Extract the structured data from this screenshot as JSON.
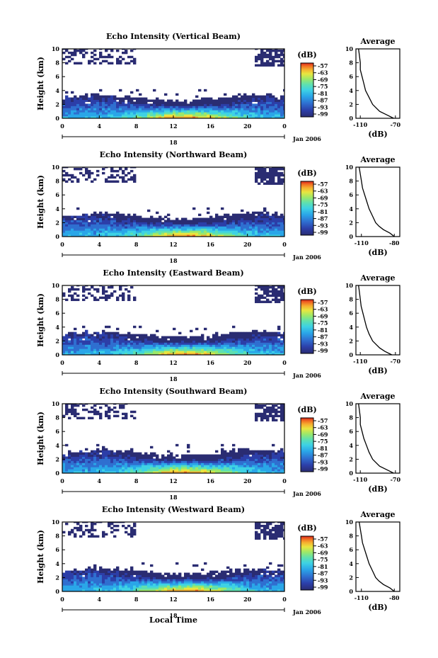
{
  "colors": {
    "scale": [
      "#2a2c72",
      "#2c3ea8",
      "#2f6fd0",
      "#2aa6e8",
      "#3ed2e4",
      "#5ee0b0",
      "#9be86a",
      "#e8e640",
      "#f6b030",
      "#f06a22",
      "#d8241c"
    ]
  },
  "common": {
    "ylabel": "Height (km)",
    "x_ticks": [
      "0",
      "4",
      "8",
      "12",
      "16",
      "20",
      "0"
    ],
    "y_ticks": [
      "0",
      "2",
      "4",
      "6",
      "8",
      "10"
    ],
    "date_tick": "18",
    "date_label": "Jan 2006",
    "xlabel": "Local Time",
    "colorbar_unit": "(dB)",
    "colorbar_ticks": [
      "-57",
      "-63",
      "-69",
      "-75",
      "-81",
      "-87",
      "-93",
      "-99"
    ],
    "profile_title": "Average",
    "profile_xlabel": "(dB)",
    "profile_y_ticks": [
      "0",
      "2",
      "4",
      "6",
      "8",
      "10"
    ]
  },
  "panels": [
    {
      "title": "Echo Intensity (Vertical Beam)",
      "profile_xticks": [
        "-110",
        "-70"
      ]
    },
    {
      "title": "Echo Intensity (Northward Beam)",
      "profile_xticks": [
        "-110",
        "-80"
      ]
    },
    {
      "title": "Echo Intensity (Eastward Beam)",
      "profile_xticks": [
        "-110",
        "-70"
      ]
    },
    {
      "title": "Echo Intensity (Southward Beam)",
      "profile_xticks": [
        "-110",
        "-70"
      ]
    },
    {
      "title": "Echo Intensity (Westward Beam)",
      "profile_xticks": [
        "-110",
        "-80"
      ]
    }
  ],
  "chart_data": {
    "type": "heatmap",
    "x_unit": "local time (h)",
    "xlim": [
      0,
      24
    ],
    "ylim": [
      0,
      10
    ],
    "colorbar_range": [
      -99,
      -57
    ],
    "profiles": [
      {
        "height": [
          0,
          0.5,
          1,
          1.5,
          2,
          3,
          4,
          5,
          6,
          7,
          8,
          9,
          10
        ],
        "db": [
          -72,
          -80,
          -88,
          -92,
          -96,
          -100,
          -104,
          -106,
          -108,
          -110,
          -110,
          -111,
          -112
        ]
      },
      {
        "height": [
          0,
          0.5,
          1,
          1.5,
          2,
          3,
          4,
          5,
          6,
          7,
          8,
          9,
          10
        ],
        "db": [
          -80,
          -84,
          -90,
          -94,
          -97,
          -100,
          -103,
          -105,
          -107,
          -109,
          -110,
          -111,
          -112
        ]
      },
      {
        "height": [
          0,
          0.5,
          1,
          1.5,
          2,
          3,
          4,
          5,
          6,
          7,
          8,
          9,
          10
        ],
        "db": [
          -74,
          -82,
          -88,
          -92,
          -96,
          -100,
          -103,
          -105,
          -107,
          -109,
          -110,
          -111,
          -112
        ]
      },
      {
        "height": [
          0,
          0.5,
          1,
          1.5,
          2,
          3,
          4,
          5,
          6,
          7,
          8,
          9,
          10
        ],
        "db": [
          -72,
          -80,
          -88,
          -92,
          -96,
          -100,
          -103,
          -106,
          -108,
          -110,
          -110,
          -111,
          -112
        ]
      },
      {
        "height": [
          0,
          0.5,
          1,
          1.5,
          2,
          3,
          4,
          5,
          6,
          7,
          8,
          9,
          10
        ],
        "db": [
          -80,
          -84,
          -90,
          -94,
          -97,
          -100,
          -103,
          -105,
          -107,
          -109,
          -110,
          -111,
          -112
        ]
      }
    ]
  }
}
